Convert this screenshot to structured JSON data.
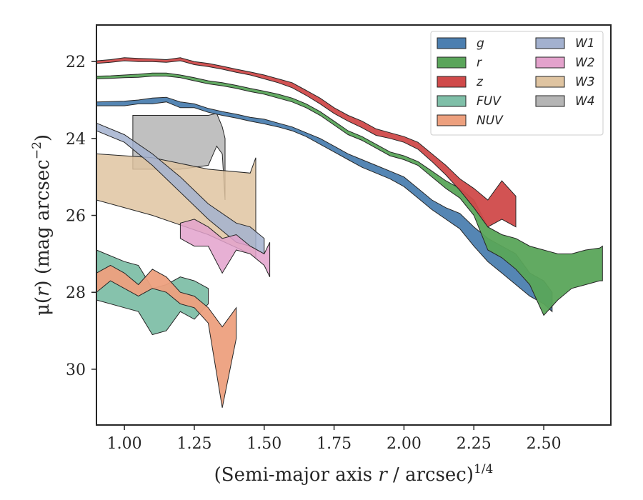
{
  "chart_data": {
    "type": "area",
    "xlabel_prefix": "(Semi-major axis ",
    "xlabel_var": "r",
    "xlabel_suffix": " / arcsec)",
    "xlabel_exp": "1/4",
    "ylabel_prefix": "μ(",
    "ylabel_var": "r",
    "ylabel_mid": ") (mag arcsec",
    "ylabel_exp": "−2",
    "ylabel_suffix": ")",
    "xlim": [
      0.9,
      2.74
    ],
    "ylim": [
      31.45,
      21.05
    ],
    "y_inverted": true,
    "xticks": [
      1.0,
      1.25,
      1.5,
      1.75,
      2.0,
      2.25,
      2.5
    ],
    "xtick_labels": [
      "1.00",
      "1.25",
      "1.50",
      "1.75",
      "2.00",
      "2.25",
      "2.50"
    ],
    "yticks": [
      22,
      24,
      26,
      28,
      30
    ],
    "ytick_labels": [
      "22",
      "24",
      "26",
      "28",
      "30"
    ],
    "grid": false,
    "legend_placement": "top-right",
    "legend_columns": 2,
    "series": [
      {
        "name": "g",
        "color": "#4c7fb0",
        "x": [
          0.9,
          1.0,
          1.05,
          1.1,
          1.15,
          1.2,
          1.25,
          1.3,
          1.35,
          1.4,
          1.45,
          1.5,
          1.55,
          1.6,
          1.65,
          1.7,
          1.75,
          1.8,
          1.85,
          1.9,
          1.95,
          2.0,
          2.05,
          2.1,
          2.15,
          2.2,
          2.25,
          2.3,
          2.35,
          2.4,
          2.45,
          2.5,
          2.53
        ],
        "y_upper": [
          23.05,
          23.03,
          23.0,
          22.95,
          22.93,
          23.05,
          23.1,
          23.22,
          23.3,
          23.37,
          23.45,
          23.5,
          23.6,
          23.7,
          23.85,
          24.0,
          24.2,
          24.4,
          24.55,
          24.7,
          24.85,
          25.0,
          25.3,
          25.6,
          25.8,
          25.95,
          26.3,
          26.6,
          26.8,
          27.0,
          27.5,
          27.7,
          28.0
        ],
        "y_lower": [
          23.15,
          23.15,
          23.1,
          23.1,
          23.05,
          23.2,
          23.2,
          23.32,
          23.4,
          23.47,
          23.55,
          23.62,
          23.7,
          23.8,
          23.95,
          24.15,
          24.35,
          24.55,
          24.75,
          24.9,
          25.05,
          25.25,
          25.55,
          25.85,
          26.1,
          26.35,
          26.8,
          27.2,
          27.5,
          27.8,
          28.1,
          28.3,
          28.5
        ]
      },
      {
        "name": "r",
        "color": "#5aa55a",
        "x": [
          0.9,
          0.95,
          1.0,
          1.05,
          1.1,
          1.15,
          1.2,
          1.25,
          1.3,
          1.35,
          1.4,
          1.45,
          1.5,
          1.55,
          1.6,
          1.65,
          1.7,
          1.75,
          1.8,
          1.85,
          1.9,
          1.95,
          2.0,
          2.05,
          2.1,
          2.15,
          2.2,
          2.25,
          2.3,
          2.35,
          2.4,
          2.45,
          2.5,
          2.55,
          2.6,
          2.65,
          2.7,
          2.71
        ],
        "y_upper": [
          22.38,
          22.37,
          22.35,
          22.33,
          22.3,
          22.3,
          22.35,
          22.42,
          22.5,
          22.55,
          22.62,
          22.7,
          22.77,
          22.85,
          22.95,
          23.1,
          23.3,
          23.55,
          23.8,
          23.95,
          24.15,
          24.35,
          24.45,
          24.6,
          24.85,
          25.1,
          25.3,
          25.6,
          26.3,
          26.5,
          26.6,
          26.8,
          26.9,
          27.0,
          27.0,
          26.9,
          26.85,
          26.8
        ],
        "y_lower": [
          22.45,
          22.44,
          22.42,
          22.41,
          22.38,
          22.38,
          22.42,
          22.5,
          22.58,
          22.63,
          22.7,
          22.78,
          22.85,
          22.95,
          23.05,
          23.2,
          23.4,
          23.65,
          23.9,
          24.05,
          24.25,
          24.45,
          24.55,
          24.7,
          25.0,
          25.3,
          25.55,
          26.0,
          26.9,
          27.1,
          27.4,
          27.8,
          28.6,
          28.2,
          27.9,
          27.8,
          27.7,
          27.7
        ]
      },
      {
        "name": "z",
        "color": "#d04a4a",
        "x": [
          0.9,
          0.95,
          1.0,
          1.05,
          1.1,
          1.15,
          1.2,
          1.25,
          1.3,
          1.35,
          1.4,
          1.45,
          1.5,
          1.55,
          1.6,
          1.65,
          1.7,
          1.75,
          1.8,
          1.85,
          1.9,
          1.95,
          2.0,
          2.05,
          2.1,
          2.15,
          2.2,
          2.25,
          2.3,
          2.35,
          2.4
        ],
        "y_upper": [
          21.98,
          21.95,
          21.9,
          21.92,
          21.93,
          21.95,
          21.9,
          22.0,
          22.05,
          22.12,
          22.2,
          22.27,
          22.35,
          22.45,
          22.55,
          22.75,
          22.95,
          23.2,
          23.4,
          23.55,
          23.75,
          23.85,
          23.95,
          24.1,
          24.4,
          24.7,
          25.05,
          25.3,
          25.6,
          25.1,
          25.5
        ],
        "y_lower": [
          22.05,
          22.02,
          21.98,
          22.0,
          22.0,
          22.02,
          21.98,
          22.08,
          22.13,
          22.2,
          22.28,
          22.35,
          22.45,
          22.55,
          22.68,
          22.88,
          23.1,
          23.35,
          23.55,
          23.72,
          23.92,
          24.0,
          24.1,
          24.28,
          24.6,
          24.95,
          25.35,
          25.8,
          26.3,
          26.1,
          26.3
        ]
      },
      {
        "name": "FUV",
        "color": "#7fbfa8",
        "x": [
          0.9,
          1.0,
          1.05,
          1.1,
          1.15,
          1.2,
          1.25,
          1.3
        ],
        "y_upper": [
          26.9,
          27.2,
          27.3,
          27.9,
          27.8,
          27.6,
          27.7,
          27.9
        ],
        "y_lower": [
          28.2,
          28.4,
          28.5,
          29.1,
          29.0,
          28.5,
          28.7,
          28.3
        ]
      },
      {
        "name": "NUV",
        "color": "#eda07e",
        "x": [
          0.9,
          0.95,
          1.0,
          1.05,
          1.1,
          1.15,
          1.2,
          1.25,
          1.3,
          1.35,
          1.4
        ],
        "y_upper": [
          27.5,
          27.3,
          27.5,
          27.8,
          27.4,
          27.6,
          28.0,
          28.1,
          28.4,
          28.9,
          28.4
        ],
        "y_lower": [
          28.0,
          27.7,
          27.9,
          28.1,
          27.9,
          28.0,
          28.3,
          28.4,
          28.8,
          31.0,
          29.2
        ]
      },
      {
        "name": "W1",
        "color": "#a3b1cf",
        "x": [
          0.9,
          1.0,
          1.1,
          1.2,
          1.3,
          1.4,
          1.45,
          1.5
        ],
        "y_upper": [
          23.6,
          23.9,
          24.4,
          25.0,
          25.7,
          26.2,
          26.3,
          26.6
        ],
        "y_lower": [
          23.8,
          24.1,
          24.7,
          25.4,
          26.1,
          26.7,
          26.8,
          27.0
        ]
      },
      {
        "name": "W2",
        "color": "#e3a2cc",
        "x": [
          1.2,
          1.25,
          1.3,
          1.35,
          1.4,
          1.45,
          1.5,
          1.52
        ],
        "y_upper": [
          26.2,
          26.1,
          26.3,
          26.6,
          26.5,
          26.8,
          27.0,
          26.7
        ],
        "y_lower": [
          26.6,
          26.8,
          26.8,
          27.5,
          26.9,
          27.0,
          27.3,
          27.6
        ]
      },
      {
        "name": "W3",
        "color": "#dfc4a1",
        "x": [
          0.9,
          1.1,
          1.3,
          1.45,
          1.47
        ],
        "y_upper": [
          24.4,
          24.5,
          24.8,
          24.9,
          24.5
        ],
        "y_lower": [
          25.6,
          26.0,
          26.5,
          27.0,
          27.1
        ]
      },
      {
        "name": "W4",
        "color": "#b5b5b5",
        "x": [
          1.03,
          1.1,
          1.2,
          1.3,
          1.33,
          1.35,
          1.36
        ],
        "y_upper": [
          23.4,
          23.4,
          23.4,
          23.4,
          23.35,
          23.7,
          24.0
        ],
        "y_lower": [
          24.8,
          24.8,
          24.8,
          24.7,
          24.2,
          24.4,
          25.6
        ]
      }
    ]
  }
}
